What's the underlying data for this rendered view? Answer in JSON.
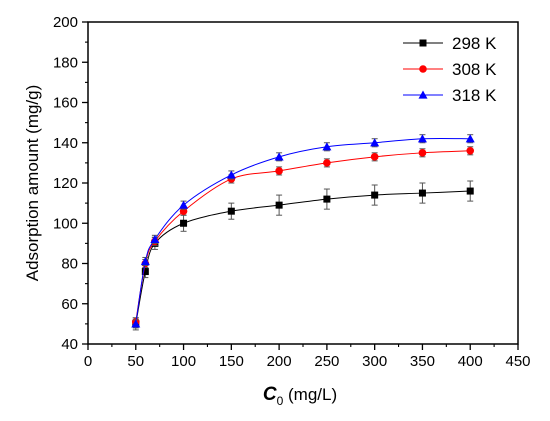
{
  "chart_data": {
    "type": "line",
    "xlabel_main": "C",
    "xlabel_sub": "0",
    "xlabel_unit": " (mg/L)",
    "ylabel": "Adsorption amount (mg/g)",
    "xlim": [
      0,
      450
    ],
    "ylim": [
      40,
      200
    ],
    "x_ticks": [
      0,
      50,
      100,
      150,
      200,
      250,
      300,
      350,
      400,
      450
    ],
    "y_ticks": [
      40,
      60,
      80,
      100,
      120,
      140,
      160,
      180,
      200
    ],
    "grid": false,
    "legend_position": "top-right",
    "x": [
      50,
      60,
      70,
      100,
      150,
      200,
      250,
      300,
      350,
      400
    ],
    "series": [
      {
        "name": "298 K",
        "color": "#000000",
        "marker": "square",
        "values": [
          50,
          76,
          90,
          100,
          106,
          109,
          112,
          114,
          115,
          116
        ],
        "errors": [
          3,
          3,
          3,
          4,
          4,
          5,
          5,
          5,
          5,
          5
        ]
      },
      {
        "name": "308 K",
        "color": "#ff0000",
        "marker": "circle",
        "values": [
          51,
          80,
          91,
          106,
          122,
          126,
          130,
          133,
          135,
          136
        ],
        "errors": [
          2,
          2,
          2,
          2,
          2,
          2,
          2,
          2,
          2,
          2
        ]
      },
      {
        "name": "318 K",
        "color": "#0000ff",
        "marker": "triangle",
        "values": [
          50,
          81,
          92,
          109,
          124,
          133,
          138,
          140,
          142,
          142
        ],
        "errors": [
          2,
          2,
          2,
          2,
          2,
          2,
          2,
          2,
          2,
          2
        ]
      }
    ]
  }
}
